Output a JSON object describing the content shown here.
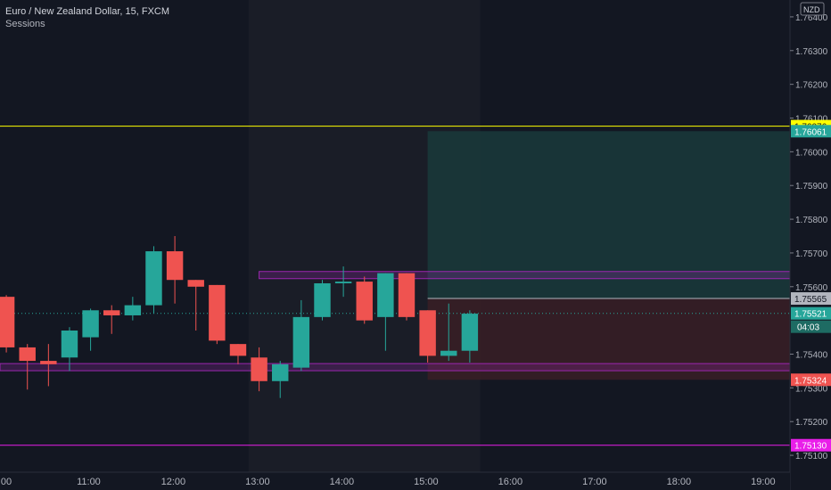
{
  "header": {
    "title": "Euro / New Zealand Dollar, 15, FXCM",
    "indicator": "Sessions"
  },
  "currency_badge": "NZD",
  "countdown": "04:03",
  "colors": {
    "background": "#131722",
    "session_shade": "#1a1d27",
    "up": "#26a69a",
    "down": "#ef5350",
    "yellow_line": "#ffff00",
    "magenta_line": "#e91ee9",
    "zone_stroke": "#9c27b0",
    "tp_zone": "#1a3a3b",
    "sl_zone": "#3a1f26"
  },
  "chart_data": {
    "type": "candlestick",
    "x_ticks": [
      "00",
      "11:00",
      "12:00",
      "13:00",
      "14:00",
      "15:00",
      "16:00",
      "17:00",
      "18:00",
      "19:00"
    ],
    "y_ticks": [
      "1.76400",
      "1.76300",
      "1.76200",
      "1.76100",
      "1.76000",
      "1.75900",
      "1.75800",
      "1.75700",
      "1.75600",
      "1.75400",
      "1.75300",
      "1.75200",
      "1.75100"
    ],
    "y_range": [
      1.7505,
      1.7645
    ],
    "x_index_range": [
      -0.3,
      37.2
    ],
    "x_tick_index": [
      0,
      4,
      8,
      12,
      16,
      20,
      24,
      28,
      32,
      36
    ],
    "session_shade_index": [
      11.5,
      22.5
    ],
    "candles": [
      {
        "t": 0,
        "o": 1.7557,
        "h": 1.75575,
        "l": 1.75405,
        "c": 1.7542
      },
      {
        "t": 1,
        "o": 1.7542,
        "h": 1.7543,
        "l": 1.75295,
        "c": 1.7538
      },
      {
        "t": 2,
        "o": 1.7538,
        "h": 1.7543,
        "l": 1.75305,
        "c": 1.7537
      },
      {
        "t": 3,
        "o": 1.7539,
        "h": 1.7548,
        "l": 1.7535,
        "c": 1.7547
      },
      {
        "t": 4,
        "o": 1.7545,
        "h": 1.75535,
        "l": 1.7541,
        "c": 1.7553
      },
      {
        "t": 5,
        "o": 1.7553,
        "h": 1.75545,
        "l": 1.7546,
        "c": 1.75515
      },
      {
        "t": 6,
        "o": 1.75515,
        "h": 1.7557,
        "l": 1.755,
        "c": 1.75545
      },
      {
        "t": 7,
        "o": 1.75545,
        "h": 1.7572,
        "l": 1.7552,
        "c": 1.75705
      },
      {
        "t": 8,
        "o": 1.75705,
        "h": 1.7575,
        "l": 1.7555,
        "c": 1.7562
      },
      {
        "t": 9,
        "o": 1.7562,
        "h": 1.7562,
        "l": 1.7547,
        "c": 1.756
      },
      {
        "t": 10,
        "o": 1.75605,
        "h": 1.75605,
        "l": 1.7543,
        "c": 1.7544
      },
      {
        "t": 11,
        "o": 1.7543,
        "h": 1.7543,
        "l": 1.7537,
        "c": 1.75395
      },
      {
        "t": 12,
        "o": 1.7539,
        "h": 1.7542,
        "l": 1.7529,
        "c": 1.7532
      },
      {
        "t": 13,
        "o": 1.7532,
        "h": 1.7538,
        "l": 1.7527,
        "c": 1.7537
      },
      {
        "t": 14,
        "o": 1.7536,
        "h": 1.7556,
        "l": 1.7535,
        "c": 1.7551
      },
      {
        "t": 15,
        "o": 1.7551,
        "h": 1.7562,
        "l": 1.755,
        "c": 1.7561
      },
      {
        "t": 16,
        "o": 1.7561,
        "h": 1.7566,
        "l": 1.7557,
        "c": 1.75615
      },
      {
        "t": 17,
        "o": 1.75615,
        "h": 1.7563,
        "l": 1.7549,
        "c": 1.755
      },
      {
        "t": 18,
        "o": 1.7551,
        "h": 1.7564,
        "l": 1.7541,
        "c": 1.7564
      },
      {
        "t": 19,
        "o": 1.7564,
        "h": 1.7564,
        "l": 1.755,
        "c": 1.7551
      },
      {
        "t": 20,
        "o": 1.7553,
        "h": 1.7553,
        "l": 1.75375,
        "c": 1.75395
      },
      {
        "t": 21,
        "o": 1.75395,
        "h": 1.7555,
        "l": 1.7538,
        "c": 1.7541
      },
      {
        "t": 22,
        "o": 1.7541,
        "h": 1.7553,
        "l": 1.75375,
        "c": 1.7552
      }
    ],
    "horizontal_lines": [
      {
        "price": 1.76076,
        "label": "1.76076",
        "color": "#ffff00",
        "label_text_color": "#131722"
      },
      {
        "price": 1.7513,
        "label": "1.75130",
        "color": "#e91ee9",
        "label_text_color": "#ffffff"
      }
    ],
    "zones": [
      {
        "name": "upper-zone",
        "top": 1.75645,
        "bottom": 1.75635,
        "from_index": 12.0
      },
      {
        "name": "lower-zone",
        "top": 1.75372,
        "bottom": 1.75358,
        "from_index": -0.3
      }
    ],
    "position": {
      "entry": 1.75565,
      "entry_label": "1.75565",
      "target": 1.76061,
      "target_label": "1.76061",
      "stop": 1.75324,
      "stop_label": "1.75324",
      "from_index": 20.0,
      "to_index": 37.2
    },
    "last_price": 1.75521,
    "last_price_label": "1.75521"
  }
}
